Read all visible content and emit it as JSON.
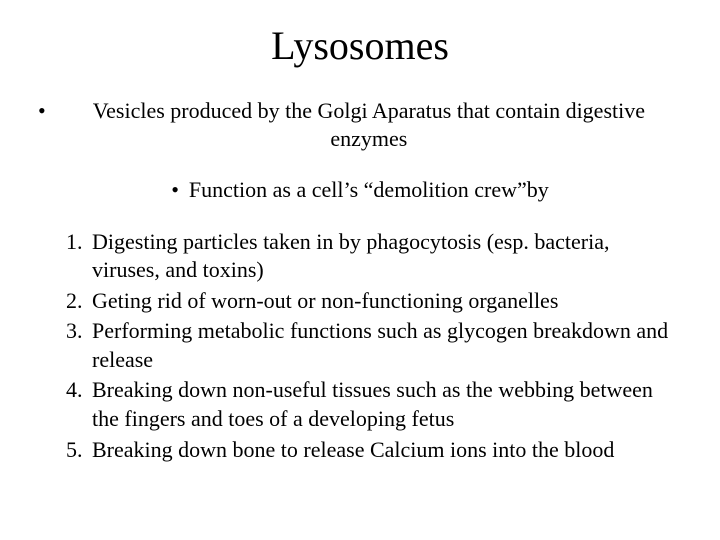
{
  "title": "Lysosomes",
  "bullets": {
    "b1": "Vesicles produced by the Golgi Aparatus that contain digestive enzymes",
    "b2": "Function as a cell’s “demolition crew”by"
  },
  "list": {
    "n1": "1.",
    "t1": "Digesting particles taken in by phagocytosis (esp. bacteria, viruses, and toxins)",
    "n2": "2.",
    "t2": "Geting rid of worn-out or non-functioning organelles",
    "n3": "3.",
    "t3": "Performing metabolic functions such as glycogen breakdown and release",
    "n4": "4.",
    "t4": "Breaking down non-useful tissues such as the webbing between the fingers and toes of a developing fetus",
    "n5": "5.",
    "t5": "Breaking down bone to release Calcium ions into the blood"
  },
  "style": {
    "background_color": "#ffffff",
    "text_color": "#000000",
    "title_fontsize": 40,
    "body_fontsize": 22,
    "font_family": "Times New Roman"
  }
}
